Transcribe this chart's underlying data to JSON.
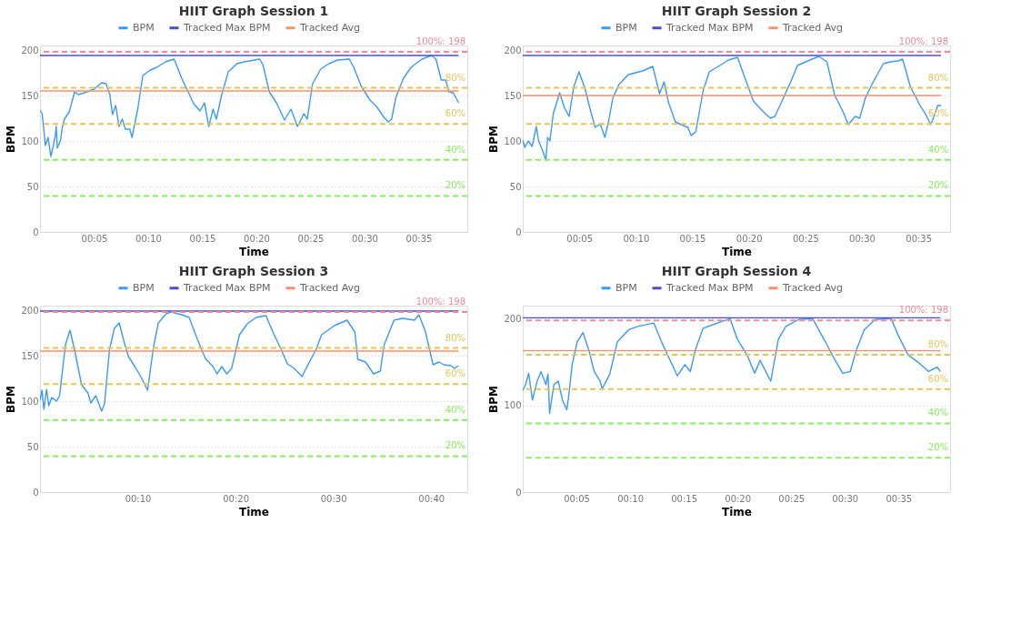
{
  "chart_data": [
    {
      "type": "line",
      "title": "HIIT Graph Session 1",
      "xlabel": "Time",
      "ylabel": "BPM",
      "legend": "top",
      "grid": "y",
      "xlim": [
        0,
        39.5
      ],
      "ylim": [
        0,
        205
      ],
      "xticks": [
        {
          "value": 5,
          "label": "00:05"
        },
        {
          "value": 10,
          "label": "00:10"
        },
        {
          "value": 15,
          "label": "00:15"
        },
        {
          "value": 20,
          "label": "00:20"
        },
        {
          "value": 25,
          "label": "00:25"
        },
        {
          "value": 30,
          "label": "00:30"
        },
        {
          "value": 35,
          "label": "00:35"
        }
      ],
      "yticks": [
        0,
        50,
        100,
        150,
        200
      ],
      "series": [
        {
          "name": "BPM",
          "color": "#3a9af5",
          "x": [
            0,
            0.2,
            0.5,
            0.75,
            1.0,
            1.2,
            1.4,
            1.5,
            1.6,
            1.9,
            2.05,
            2.25,
            2.7,
            3.2,
            3.55,
            4.1,
            5.0,
            5.7,
            6.1,
            6.45,
            6.7,
            7.0,
            7.3,
            7.6,
            7.9,
            8.3,
            8.5,
            9.05,
            9.5,
            10.2,
            10.8,
            11.6,
            12.4,
            12.8,
            13.2,
            13.7,
            14.2,
            14.8,
            15.2,
            15.6,
            16,
            16.3,
            16.8,
            17.4,
            18.2,
            18.9,
            20.3,
            20.6,
            21.2,
            21.9,
            22.6,
            23.2,
            23.8,
            24.4,
            24.7,
            25.2,
            25.95,
            26.7,
            27.5,
            28.6,
            29,
            29.7,
            30.5,
            31.1,
            31.8,
            32.2,
            32.5,
            32.9,
            33.6,
            34.3,
            35.3,
            36.2,
            36.6,
            37.1,
            37.5,
            37.8,
            38.2,
            38.7
          ],
          "values": [
            134,
            130,
            95,
            104,
            83,
            93,
            105,
            116,
            92,
            101,
            114,
            124,
            132,
            154,
            151,
            153,
            157,
            164,
            163,
            151,
            129,
            139,
            116,
            124,
            113,
            113,
            104,
            136,
            172,
            178,
            181,
            187,
            190,
            178,
            166,
            154,
            141,
            133,
            142,
            116,
            135,
            124,
            151,
            176,
            185,
            187,
            190,
            184,
            154,
            141,
            123,
            135,
            116,
            130,
            124,
            163,
            179,
            185,
            189,
            190,
            181,
            160,
            145,
            138,
            126,
            121,
            124,
            148,
            169,
            181,
            190,
            194,
            190,
            167,
            167,
            154,
            153,
            142
          ]
        },
        {
          "name": "Tracked Max BPM",
          "color": "#4b4fc4",
          "x": [
            0,
            38.7
          ],
          "values": [
            194,
            194
          ]
        },
        {
          "name": "Tracked Avg",
          "color": "#f4916f",
          "x": [
            0,
            38.7
          ],
          "values": [
            155,
            155
          ]
        }
      ],
      "ref_lines": [
        {
          "axis": "y",
          "value": 198,
          "label": "100%: 198",
          "color": "#ee8a9a",
          "line_style": "dashed"
        },
        {
          "axis": "y",
          "value": 158.4,
          "color": "#e8c458",
          "line_style": "dashed"
        },
        {
          "axis": "y",
          "value": 118.8,
          "color": "#e8c458",
          "line_style": "dashed"
        },
        {
          "axis": "y",
          "value": 79.2,
          "color": "#86ee5a",
          "line_style": "dashed"
        },
        {
          "axis": "y",
          "value": 39.6,
          "color": "#86ee5a",
          "line_style": "dashed"
        }
      ],
      "annotations": [
        {
          "text": "80%",
          "y": 158.4
        },
        {
          "text": "60%",
          "y": 118.8
        },
        {
          "text": "40%",
          "y": 79.2
        },
        {
          "text": "20%",
          "y": 39.6
        }
      ]
    },
    {
      "type": "line",
      "title": "HIIT Graph Session 2",
      "xlabel": "Time",
      "ylabel": "BPM",
      "legend": "top",
      "grid": "y",
      "xlim": [
        0,
        37.8
      ],
      "ylim": [
        0,
        205
      ],
      "xticks": [
        {
          "value": 5,
          "label": "00:05"
        },
        {
          "value": 10,
          "label": "00:10"
        },
        {
          "value": 15,
          "label": "00:15"
        },
        {
          "value": 20,
          "label": "00:20"
        },
        {
          "value": 25,
          "label": "00:25"
        },
        {
          "value": 30,
          "label": "00:30"
        },
        {
          "value": 35,
          "label": "00:35"
        }
      ],
      "yticks": [
        0,
        50,
        100,
        150,
        200
      ],
      "series": [
        {
          "name": "BPM",
          "color": "#3a9af5",
          "x": [
            0,
            0.17,
            0.5,
            0.83,
            1.2,
            1.4,
            1.74,
            2.04,
            2.2,
            2.4,
            2.7,
            3.26,
            3.67,
            4.1,
            4.5,
            4.97,
            5.47,
            6.0,
            6.4,
            6.85,
            7.26,
            7.6,
            7.96,
            8.5,
            9.34,
            10.6,
            11.5,
            12.1,
            12.5,
            12.9,
            13.5,
            14.0,
            14.6,
            14.9,
            15.3,
            15.97,
            16.5,
            17.3,
            18.2,
            19.0,
            19.6,
            20.4,
            21.2,
            21.9,
            22.3,
            22.9,
            23.7,
            24.3,
            25.4,
            26.2,
            26.9,
            27.6,
            28.3,
            28.8,
            29.4,
            29.8,
            30.3,
            31.0,
            31.9,
            32.5,
            33.2,
            33.6,
            34.3,
            34.7,
            35.1,
            35.6,
            36.1,
            36.4,
            36.7,
            37.0
          ],
          "values": [
            101,
            93,
            100,
            94,
            116,
            100,
            90,
            79,
            104,
            100,
            130,
            153,
            137,
            127,
            159,
            176,
            159,
            133,
            115,
            119,
            104,
            122,
            147,
            162,
            173,
            177,
            182,
            152,
            165,
            142,
            121,
            118,
            115,
            106,
            110,
            156,
            176,
            182,
            189,
            192,
            171,
            144,
            133,
            125,
            127,
            143,
            165,
            183,
            189,
            193,
            187,
            150,
            133,
            118,
            127,
            125,
            147,
            165,
            185,
            187,
            188,
            190,
            159,
            150,
            140,
            130,
            118,
            128,
            139,
            139
          ]
        },
        {
          "name": "Tracked Max BPM",
          "color": "#4b4fc4",
          "x": [
            0,
            37.0
          ],
          "values": [
            194,
            194
          ]
        },
        {
          "name": "Tracked Avg",
          "color": "#f4916f",
          "x": [
            0,
            37.0
          ],
          "values": [
            150,
            150
          ]
        }
      ],
      "ref_lines": [
        {
          "axis": "y",
          "value": 198,
          "label": "100%: 198",
          "color": "#ee8a9a",
          "line_style": "dashed"
        },
        {
          "axis": "y",
          "value": 158.4,
          "color": "#e8c458",
          "line_style": "dashed"
        },
        {
          "axis": "y",
          "value": 118.8,
          "color": "#e8c458",
          "line_style": "dashed"
        },
        {
          "axis": "y",
          "value": 79.2,
          "color": "#86ee5a",
          "line_style": "dashed"
        },
        {
          "axis": "y",
          "value": 39.6,
          "color": "#86ee5a",
          "line_style": "dashed"
        }
      ],
      "annotations": [
        {
          "text": "80%",
          "y": 158.4
        },
        {
          "text": "60%",
          "y": 118.8
        },
        {
          "text": "40%",
          "y": 79.2
        },
        {
          "text": "20%",
          "y": 39.6
        }
      ]
    },
    {
      "type": "line",
      "title": "HIIT Graph Session 3",
      "xlabel": "Time",
      "ylabel": "BPM",
      "legend": "top",
      "grid": "y",
      "xlim": [
        0,
        43.7
      ],
      "ylim": [
        0,
        205
      ],
      "xticks": [
        {
          "value": 10,
          "label": "00:10"
        },
        {
          "value": 20,
          "label": "00:20"
        },
        {
          "value": 30,
          "label": "00:30"
        },
        {
          "value": 40,
          "label": "00:40"
        }
      ],
      "yticks": [
        0,
        50,
        100,
        150,
        200
      ],
      "series": [
        {
          "name": "BPM",
          "color": "#3a9af5",
          "x": [
            0,
            0.2,
            0.4,
            0.67,
            0.9,
            1.2,
            1.7,
            2.0,
            2.6,
            3.07,
            3.6,
            4.25,
            4.9,
            5.2,
            5.7,
            6.3,
            6.6,
            7.1,
            7.6,
            8.1,
            8.6,
            9.05,
            9.7,
            10.3,
            11,
            11.6,
            12.1,
            12.9,
            13.4,
            14.5,
            15.25,
            16.1,
            16.9,
            17.7,
            18.1,
            18.6,
            19.1,
            19.6,
            20.4,
            21.2,
            22.1,
            23.1,
            23.9,
            24.7,
            25.3,
            26,
            26.8,
            27.4,
            28.2,
            28.8,
            30.1,
            31.4,
            32.2,
            32.5,
            33.3,
            34.1,
            34.8,
            35.2,
            36.2,
            37.1,
            38.3,
            38.75,
            39.4,
            40.2,
            40.8,
            41.3,
            42,
            42.4,
            42.8
          ],
          "values": [
            101,
            112,
            91,
            113,
            95,
            104,
            100,
            106,
            162,
            178,
            153,
            118,
            109,
            98,
            106,
            89,
            97,
            156,
            180,
            186,
            165,
            149,
            138,
            127,
            112,
            159,
            186,
            196,
            198,
            195,
            192,
            168,
            147,
            138,
            130,
            138,
            130,
            136,
            173,
            185,
            192,
            194,
            174,
            156,
            141,
            136,
            127,
            140,
            156,
            173,
            183,
            189,
            176,
            146,
            143,
            130,
            133,
            162,
            189,
            191,
            189,
            195,
            177,
            140,
            143,
            140,
            139,
            136,
            139
          ]
        },
        {
          "name": "Tracked Max BPM",
          "color": "#4b4fc4",
          "x": [
            0,
            42.8
          ],
          "values": [
            199,
            199
          ]
        },
        {
          "name": "Tracked Avg",
          "color": "#f4916f",
          "x": [
            0,
            42.8
          ],
          "values": [
            155,
            155
          ]
        }
      ],
      "ref_lines": [
        {
          "axis": "y",
          "value": 198,
          "label": "100%: 198",
          "color": "#ee8a9a",
          "line_style": "dashed"
        },
        {
          "axis": "y",
          "value": 158.4,
          "color": "#e8c458",
          "line_style": "dashed"
        },
        {
          "axis": "y",
          "value": 118.8,
          "color": "#e8c458",
          "line_style": "dashed"
        },
        {
          "axis": "y",
          "value": 79.2,
          "color": "#86ee5a",
          "line_style": "dashed"
        },
        {
          "axis": "y",
          "value": 39.6,
          "color": "#86ee5a",
          "line_style": "dashed"
        }
      ],
      "annotations": [
        {
          "text": "80%",
          "y": 158.4
        },
        {
          "text": "60%",
          "y": 118.8
        },
        {
          "text": "40%",
          "y": 79.2
        },
        {
          "text": "20%",
          "y": 39.6
        }
      ]
    },
    {
      "type": "line",
      "title": "HIIT Graph Session 4",
      "xlabel": "Time",
      "ylabel": "BPM",
      "legend": "top",
      "grid": "y",
      "xlim": [
        0,
        39.8
      ],
      "ylim": [
        0,
        215
      ],
      "xticks": [
        {
          "value": 5,
          "label": "00:05"
        },
        {
          "value": 10,
          "label": "00:10"
        },
        {
          "value": 15,
          "label": "00:15"
        },
        {
          "value": 20,
          "label": "00:20"
        },
        {
          "value": 25,
          "label": "00:25"
        },
        {
          "value": 30,
          "label": "00:30"
        },
        {
          "value": 35,
          "label": "00:35"
        }
      ],
      "yticks": [
        0,
        100,
        200
      ],
      "series": [
        {
          "name": "BPM",
          "color": "#3a9af5",
          "x": [
            0,
            0.26,
            0.55,
            0.9,
            1.34,
            1.7,
            2.15,
            2.35,
            2.5,
            2.9,
            3.3,
            3.7,
            4.1,
            4.3,
            4.6,
            5.06,
            5.6,
            6.2,
            6.65,
            7.2,
            7.4,
            8.1,
            8.8,
            9.85,
            10.7,
            12.2,
            12.9,
            13.5,
            14.4,
            15.1,
            15.6,
            16.1,
            16.8,
            17.7,
            18.6,
            19.3,
            20,
            20.9,
            21.6,
            22.1,
            23.1,
            23.8,
            24.5,
            25.7,
            27,
            28.2,
            29,
            29.8,
            30.5,
            31.1,
            31.8,
            32.8,
            34.3,
            35,
            35.9,
            36.9,
            37.8,
            38.6,
            38.9
          ],
          "values": [
            117,
            124,
            137,
            106,
            128,
            139,
            124,
            136,
            91,
            124,
            128,
            106,
            95,
            113,
            147,
            173,
            184,
            162,
            139,
            128,
            119,
            136,
            173,
            187,
            191,
            195,
            174,
            158,
            134,
            147,
            139,
            165,
            189,
            193,
            197,
            200,
            176,
            158,
            137,
            152,
            128,
            176,
            191,
            199,
            200,
            173,
            154,
            137,
            139,
            165,
            187,
            199,
            200,
            180,
            158,
            149,
            139,
            144,
            139
          ]
        },
        {
          "name": "Tracked Max BPM",
          "color": "#4b4fc4",
          "x": [
            0,
            38.9
          ],
          "values": [
            201,
            201
          ]
        },
        {
          "name": "Tracked Avg",
          "color": "#f4916f",
          "x": [
            0,
            38.9
          ],
          "values": [
            163,
            163
          ]
        }
      ],
      "ref_lines": [
        {
          "axis": "y",
          "value": 198,
          "label": "100%: 198",
          "color": "#ee8a9a",
          "line_style": "dashed"
        },
        {
          "axis": "y",
          "value": 158.4,
          "color": "#e8c458",
          "line_style": "dashed"
        },
        {
          "axis": "y",
          "value": 118.8,
          "color": "#e8c458",
          "line_style": "dashed"
        },
        {
          "axis": "y",
          "value": 79.2,
          "color": "#86ee5a",
          "line_style": "dashed"
        },
        {
          "axis": "y",
          "value": 39.6,
          "color": "#86ee5a",
          "line_style": "dashed"
        }
      ],
      "annotations": [
        {
          "text": "80%",
          "y": 158.4
        },
        {
          "text": "60%",
          "y": 118.8
        },
        {
          "text": "40%",
          "y": 79.2
        },
        {
          "text": "20%",
          "y": 39.6
        }
      ]
    }
  ]
}
